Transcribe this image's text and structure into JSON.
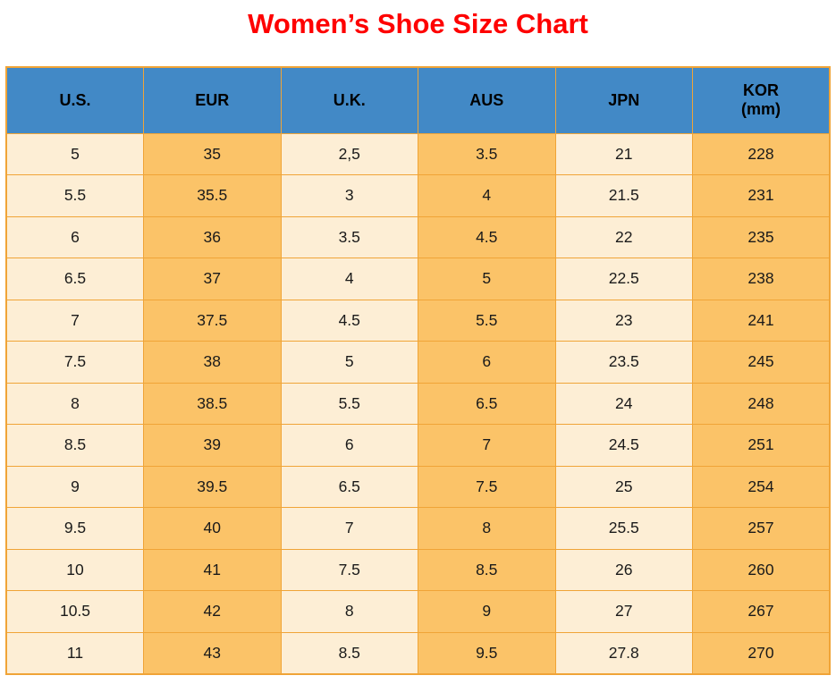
{
  "title": {
    "text": "Women’s Shoe Size Chart"
  },
  "colors": {
    "title": "#FE0000",
    "header_bg": "#4289C6",
    "column_light": "#FDEED5",
    "column_orange": "#FBC368",
    "border": "#F0A437",
    "text": "#1A1A1A"
  },
  "header_display": [
    {
      "line1": "U.S."
    },
    {
      "line1": "EUR"
    },
    {
      "line1": "U.K."
    },
    {
      "line1": "AUS"
    },
    {
      "line1": "JPN"
    },
    {
      "line1": "KOR",
      "line2": "(mm)"
    }
  ],
  "chart_data": {
    "type": "table",
    "title": "Women’s Shoe Size Chart",
    "columns": [
      "U.S.",
      "EUR",
      "U.K.",
      "AUS",
      "JPN",
      "KOR (mm)"
    ],
    "rows": [
      [
        "5",
        "35",
        "2,5",
        "3.5",
        "21",
        "228"
      ],
      [
        "5.5",
        "35.5",
        "3",
        "4",
        "21.5",
        "231"
      ],
      [
        "6",
        "36",
        "3.5",
        "4.5",
        "22",
        "235"
      ],
      [
        "6.5",
        "37",
        "4",
        "5",
        "22.5",
        "238"
      ],
      [
        "7",
        "37.5",
        "4.5",
        "5.5",
        "23",
        "241"
      ],
      [
        "7.5",
        "38",
        "5",
        "6",
        "23.5",
        "245"
      ],
      [
        "8",
        "38.5",
        "5.5",
        "6.5",
        "24",
        "248"
      ],
      [
        "8.5",
        "39",
        "6",
        "7",
        "24.5",
        "251"
      ],
      [
        "9",
        "39.5",
        "6.5",
        "7.5",
        "25",
        "254"
      ],
      [
        "9.5",
        "40",
        "7",
        "8",
        "25.5",
        "257"
      ],
      [
        "10",
        "41",
        "7.5",
        "8.5",
        "26",
        "260"
      ],
      [
        "10.5",
        "42",
        "8",
        "9",
        "27",
        "267"
      ],
      [
        "11",
        "43",
        "8.5",
        "9.5",
        "27.8",
        "270"
      ]
    ],
    "layout": {
      "legend": false,
      "grid": true,
      "column_shading_order": [
        "light",
        "orange",
        "light",
        "orange",
        "light",
        "orange"
      ]
    }
  }
}
